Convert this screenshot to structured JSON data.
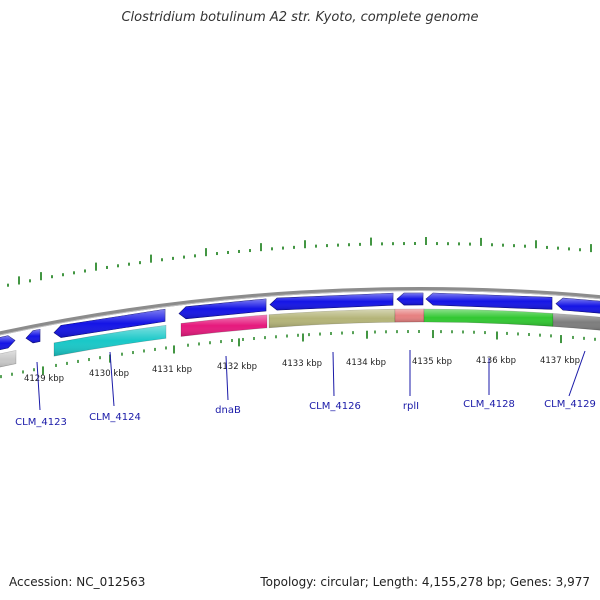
{
  "title": "Clostridium botulinum A2 str. Kyoto, complete genome",
  "footer": {
    "accession": "Accession: NC_012563",
    "summary": "Topology: circular; Length: 4,155,278 bp; Genes: 3,977"
  },
  "scale_labels": [
    "4129 kbp",
    "4130 kbp",
    "4131 kbp",
    "4132 kbp",
    "4133 kbp",
    "4134 kbp",
    "4135 kbp",
    "4136 kbp",
    "4137 kbp"
  ],
  "gene_labels": [
    "CLM_4123",
    "CLM_4124",
    "dnaB",
    "CLM_4126",
    "rplI",
    "CLM_4128",
    "CLM_4129"
  ],
  "colors": {
    "backbone": "#8c8c8c",
    "cds": "#1414e6",
    "gene_label": "#1a1aa8",
    "tick": "#2e8b2e",
    "cyan": "#19c8c8",
    "magenta": "#e6197d",
    "olive": "#b4b478",
    "salmon": "#e68080",
    "green": "#32c832",
    "grey": "#7d7d7d",
    "light_grey": "#c8c8c8"
  }
}
